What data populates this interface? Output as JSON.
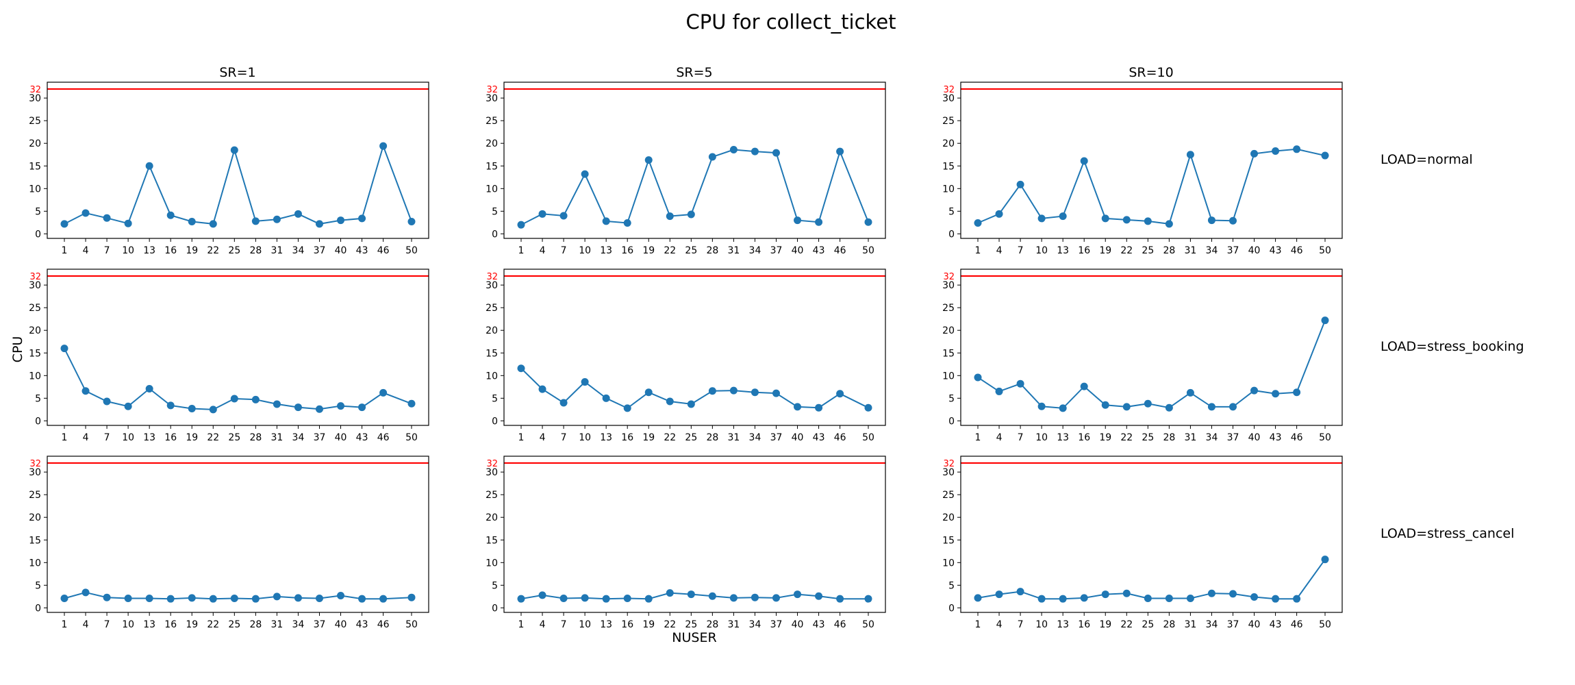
{
  "figure": {
    "title": "CPU for collect_ticket",
    "xlabel": "NUSER",
    "ylabel": "CPU",
    "column_titles": [
      "SR=1",
      "SR=5",
      "SR=10"
    ],
    "row_labels": [
      "LOAD=normal",
      "LOAD=stress_booking",
      "LOAD=stress_cancel"
    ],
    "threshold_label": "32"
  },
  "colors": {
    "series": "#1f77b4",
    "threshold": "#ff0000",
    "axes": "#000000",
    "background": "#ffffff"
  },
  "chart_data": [
    {
      "type": "line",
      "title": "SR=1",
      "row_label": "LOAD=normal",
      "x": [
        1,
        4,
        7,
        10,
        13,
        16,
        19,
        22,
        25,
        28,
        31,
        34,
        37,
        40,
        43,
        46,
        50
      ],
      "values": [
        2.2,
        4.6,
        3.5,
        2.3,
        15.0,
        4.1,
        2.7,
        2.2,
        18.5,
        2.8,
        3.2,
        4.4,
        2.2,
        3.0,
        3.4,
        19.4,
        2.7
      ],
      "threshold": 32,
      "yticks": [
        0,
        5,
        10,
        15,
        20,
        25,
        30
      ],
      "ylim": [
        -1,
        33.5
      ],
      "grid": false
    },
    {
      "type": "line",
      "title": "SR=5",
      "row_label": "LOAD=normal",
      "x": [
        1,
        4,
        7,
        10,
        13,
        16,
        19,
        22,
        25,
        28,
        31,
        34,
        37,
        40,
        43,
        46,
        50
      ],
      "values": [
        2.0,
        4.4,
        4.0,
        13.2,
        2.8,
        2.4,
        16.3,
        3.9,
        4.3,
        17.0,
        18.6,
        18.2,
        17.9,
        3.0,
        2.6,
        18.2,
        2.6
      ],
      "threshold": 32,
      "yticks": [
        0,
        5,
        10,
        15,
        20,
        25,
        30
      ],
      "ylim": [
        -1,
        33.5
      ],
      "grid": false
    },
    {
      "type": "line",
      "title": "SR=10",
      "row_label": "LOAD=normal",
      "x": [
        1,
        4,
        7,
        10,
        13,
        16,
        19,
        22,
        25,
        28,
        31,
        34,
        37,
        40,
        43,
        46,
        50
      ],
      "values": [
        2.4,
        4.4,
        10.9,
        3.4,
        3.9,
        16.1,
        3.4,
        3.1,
        2.8,
        2.2,
        17.5,
        3.0,
        2.9,
        17.7,
        18.3,
        18.7,
        17.3
      ],
      "threshold": 32,
      "yticks": [
        0,
        5,
        10,
        15,
        20,
        25,
        30
      ],
      "ylim": [
        -1,
        33.5
      ],
      "grid": false
    },
    {
      "type": "line",
      "title": "SR=1",
      "row_label": "LOAD=stress_booking",
      "x": [
        1,
        4,
        7,
        10,
        13,
        16,
        19,
        22,
        25,
        28,
        31,
        34,
        37,
        40,
        43,
        46,
        50
      ],
      "values": [
        16.0,
        6.6,
        4.3,
        3.2,
        7.1,
        3.4,
        2.7,
        2.5,
        4.9,
        4.7,
        3.7,
        3.0,
        2.6,
        3.3,
        3.0,
        6.2,
        3.8
      ],
      "threshold": 32,
      "yticks": [
        0,
        5,
        10,
        15,
        20,
        25,
        30
      ],
      "ylim": [
        -1,
        33.5
      ],
      "grid": false
    },
    {
      "type": "line",
      "title": "SR=5",
      "row_label": "LOAD=stress_booking",
      "x": [
        1,
        4,
        7,
        10,
        13,
        16,
        19,
        22,
        25,
        28,
        31,
        34,
        37,
        40,
        43,
        46,
        50
      ],
      "values": [
        11.6,
        7.0,
        4.0,
        8.6,
        5.0,
        2.8,
        6.3,
        4.3,
        3.7,
        6.6,
        6.7,
        6.3,
        6.1,
        3.1,
        2.9,
        6.0,
        2.9
      ],
      "threshold": 32,
      "yticks": [
        0,
        5,
        10,
        15,
        20,
        25,
        30
      ],
      "ylim": [
        -1,
        33.5
      ],
      "grid": false
    },
    {
      "type": "line",
      "title": "SR=10",
      "row_label": "LOAD=stress_booking",
      "x": [
        1,
        4,
        7,
        10,
        13,
        16,
        19,
        22,
        25,
        28,
        31,
        34,
        37,
        40,
        43,
        46,
        50
      ],
      "values": [
        9.6,
        6.5,
        8.2,
        3.2,
        2.8,
        7.6,
        3.5,
        3.1,
        3.8,
        2.9,
        6.2,
        3.1,
        3.1,
        6.7,
        6.0,
        6.3,
        22.2
      ],
      "threshold": 32,
      "yticks": [
        0,
        5,
        10,
        15,
        20,
        25,
        30
      ],
      "ylim": [
        -1,
        33.5
      ],
      "grid": false
    },
    {
      "type": "line",
      "title": "SR=1",
      "row_label": "LOAD=stress_cancel",
      "x": [
        1,
        4,
        7,
        10,
        13,
        16,
        19,
        22,
        25,
        28,
        31,
        34,
        37,
        40,
        43,
        46,
        50
      ],
      "values": [
        2.1,
        3.4,
        2.3,
        2.1,
        2.1,
        2.0,
        2.2,
        2.0,
        2.1,
        2.0,
        2.5,
        2.2,
        2.1,
        2.7,
        2.0,
        2.0,
        2.3
      ],
      "threshold": 32,
      "yticks": [
        0,
        5,
        10,
        15,
        20,
        25,
        30
      ],
      "ylim": [
        -1,
        33.5
      ],
      "grid": false
    },
    {
      "type": "line",
      "title": "SR=5",
      "row_label": "LOAD=stress_cancel",
      "x": [
        1,
        4,
        7,
        10,
        13,
        16,
        19,
        22,
        25,
        28,
        31,
        34,
        37,
        40,
        43,
        46,
        50
      ],
      "values": [
        2.0,
        2.8,
        2.1,
        2.2,
        2.0,
        2.1,
        2.0,
        3.3,
        3.0,
        2.6,
        2.2,
        2.3,
        2.2,
        3.0,
        2.6,
        2.0,
        2.0
      ],
      "threshold": 32,
      "yticks": [
        0,
        5,
        10,
        15,
        20,
        25,
        30
      ],
      "ylim": [
        -1,
        33.5
      ],
      "grid": false
    },
    {
      "type": "line",
      "title": "SR=10",
      "row_label": "LOAD=stress_cancel",
      "x": [
        1,
        4,
        7,
        10,
        13,
        16,
        19,
        22,
        25,
        28,
        31,
        34,
        37,
        40,
        43,
        46,
        50
      ],
      "values": [
        2.2,
        3.0,
        3.6,
        2.0,
        2.0,
        2.2,
        3.0,
        3.2,
        2.1,
        2.1,
        2.1,
        3.2,
        3.1,
        2.4,
        2.0,
        2.0,
        10.7
      ],
      "threshold": 32,
      "yticks": [
        0,
        5,
        10,
        15,
        20,
        25,
        30
      ],
      "ylim": [
        -1,
        33.5
      ],
      "grid": false
    }
  ]
}
